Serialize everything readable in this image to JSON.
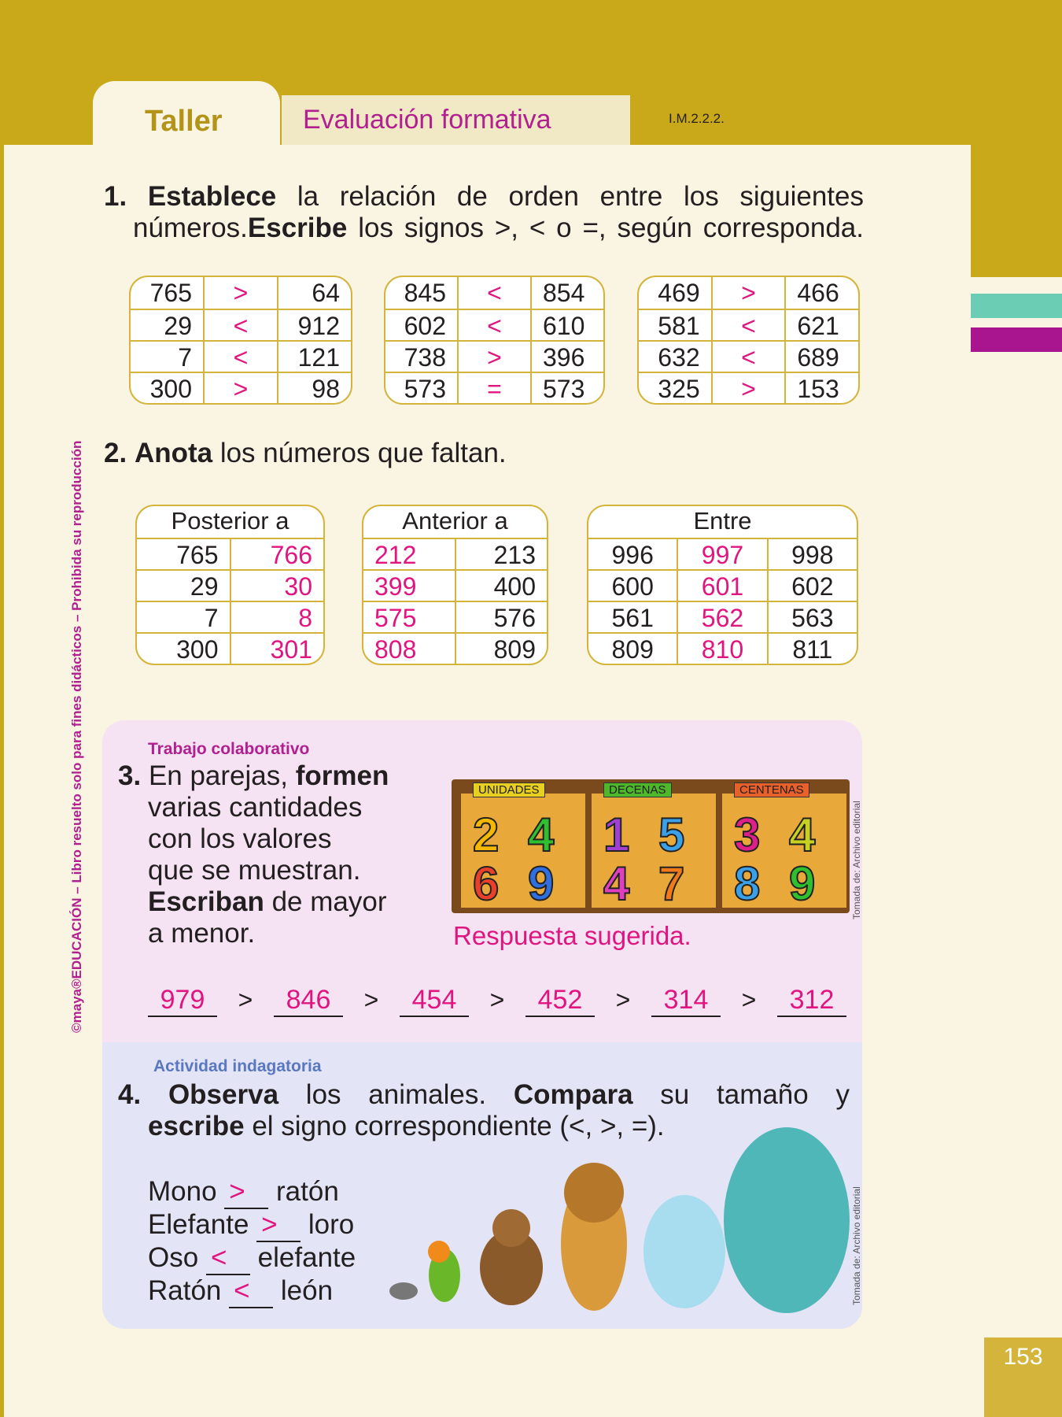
{
  "header": {
    "tab_taller": "Taller",
    "tab_eval": "Evaluación formativa",
    "code": "I.M.2.2.2."
  },
  "side_text": "©maya®EDUCACIÓN – Libro resuelto solo para fines didácticos – Prohibida su reproducción",
  "page_number": "153",
  "colors": {
    "gold": "#c9a91a",
    "magenta": "#b0208f",
    "answer_pink": "#e0157f",
    "teal": "#6ccdb5",
    "pink_box": "#f5e3f3",
    "blue_box": "#e3e4f5"
  },
  "q1": {
    "num": "1.",
    "bold1": "Establece",
    "text1": " la relación de orden entre los siguientes",
    "text2a": "números.",
    "bold2": "Escribe",
    "text2b": " los signos >, < o =, según corresponda.",
    "tables": [
      [
        [
          "765",
          ">",
          "64"
        ],
        [
          "29",
          "<",
          "912"
        ],
        [
          "7",
          "<",
          "121"
        ],
        [
          "300",
          ">",
          "98"
        ]
      ],
      [
        [
          "845",
          "<",
          "854"
        ],
        [
          "602",
          "<",
          "610"
        ],
        [
          "738",
          ">",
          "396"
        ],
        [
          "573",
          "=",
          "573"
        ]
      ],
      [
        [
          "469",
          ">",
          "466"
        ],
        [
          "581",
          "<",
          "621"
        ],
        [
          "632",
          "<",
          "689"
        ],
        [
          "325",
          ">",
          "153"
        ]
      ]
    ]
  },
  "q2": {
    "num": "2.",
    "bold": "Anota",
    "text": " los números que faltan.",
    "posterior": {
      "header": "Posterior a",
      "rows": [
        [
          "765",
          "766"
        ],
        [
          "29",
          "30"
        ],
        [
          "7",
          "8"
        ],
        [
          "300",
          "301"
        ]
      ]
    },
    "anterior": {
      "header": "Anterior a",
      "rows": [
        [
          "212",
          "213"
        ],
        [
          "399",
          "400"
        ],
        [
          "575",
          "576"
        ],
        [
          "808",
          "809"
        ]
      ]
    },
    "entre": {
      "header": "Entre",
      "rows": [
        [
          "996",
          "997",
          "998"
        ],
        [
          "600",
          "601",
          "602"
        ],
        [
          "561",
          "562",
          "563"
        ],
        [
          "809",
          "810",
          "811"
        ]
      ]
    }
  },
  "q3": {
    "tag": "Trabajo colaborativo",
    "num": "3.",
    "l1a": "En parejas, ",
    "l1b": "formen",
    "l2": "varias cantidades",
    "l3": "con los valores",
    "l4": "que se muestran.",
    "l5a": "Escriban",
    "l5b": " de mayor",
    "l6": "a menor.",
    "board": {
      "labels": [
        "UNIDADES",
        "DECENAS",
        "CENTENAS"
      ],
      "digits": [
        [
          "2",
          "4",
          "6",
          "9"
        ],
        [
          "1",
          "5",
          "4",
          "7"
        ],
        [
          "3",
          "4",
          "8",
          "9"
        ]
      ]
    },
    "credit": "Tomada de: Archivo editorial",
    "suggested": "Respuesta sugerida.",
    "answers": [
      "979",
      "846",
      "454",
      "452",
      "314",
      "312"
    ],
    "sign": ">"
  },
  "q4": {
    "tag": "Actividad indagatoria",
    "num": "4.",
    "b1": "Observa",
    "t1": " los animales. ",
    "b2": "Compara",
    "t2": " su tamaño y",
    "b3": "escribe",
    "t3": " el signo correspondiente (<, >, =).",
    "items": [
      {
        "a": "Mono",
        "s": ">",
        "b": "ratón"
      },
      {
        "a": "Elefante",
        "s": ">",
        "b": "loro"
      },
      {
        "a": "Oso",
        "s": "<",
        "b": "elefante"
      },
      {
        "a": "Ratón",
        "s": "<",
        "b": "león"
      }
    ],
    "credit": "Tomada de: Archivo editorial"
  }
}
